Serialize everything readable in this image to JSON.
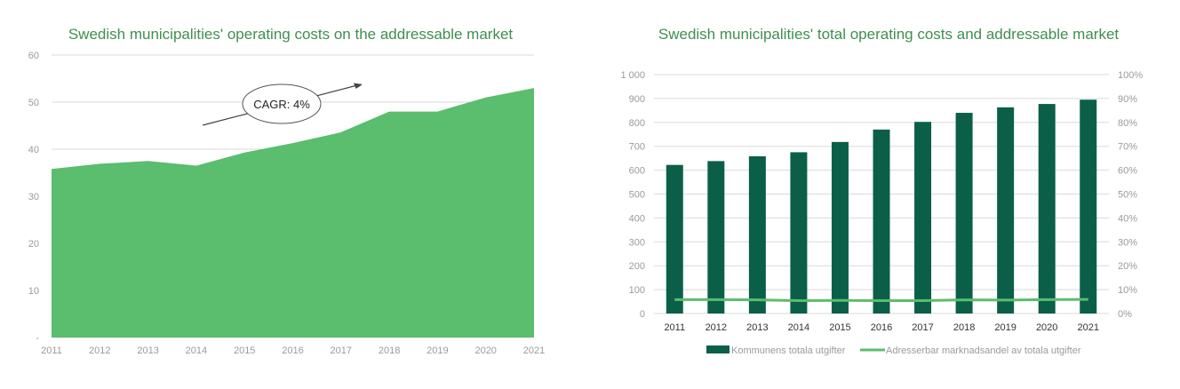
{
  "chart_data": [
    {
      "type": "area",
      "title": "Swedish municipalities' operating costs on the addressable market",
      "x": [
        "2011",
        "2012",
        "2013",
        "2014",
        "2015",
        "2016",
        "2017",
        "2018",
        "2019",
        "2020",
        "2021"
      ],
      "series": [
        {
          "values": [
            35.8,
            36.9,
            37.5,
            36.5,
            39.3,
            41.3,
            43.6,
            48.0,
            48.0,
            51.0,
            53.0
          ]
        }
      ],
      "y_ticks": [
        "-",
        "10",
        "20",
        "30",
        "40",
        "50",
        "60"
      ],
      "ylim": [
        0,
        60
      ],
      "grid": true,
      "annotation": "CAGR: 4%",
      "colors": {
        "area": "#5bbd6e",
        "title": "#3f8f4f"
      }
    },
    {
      "type": "bar",
      "title": "Swedish municipalities' total operating costs and addressable market",
      "categories": [
        "2011",
        "2012",
        "2013",
        "2014",
        "2015",
        "2016",
        "2017",
        "2018",
        "2019",
        "2020",
        "2021"
      ],
      "series": [
        {
          "name": "Kommunens totala utgifter",
          "axis": "left",
          "type": "bar",
          "values": [
            622,
            638,
            658,
            675,
            718,
            770,
            802,
            840,
            863,
            877,
            895
          ]
        },
        {
          "name": "Adresserbar marknadsandel av totala utgifter",
          "axis": "right",
          "type": "line",
          "values": [
            5.8,
            5.8,
            5.7,
            5.4,
            5.5,
            5.4,
            5.4,
            5.7,
            5.6,
            5.8,
            5.9
          ]
        }
      ],
      "y_left_ticks": [
        "0",
        "100",
        "200",
        "300",
        "400",
        "500",
        "600",
        "700",
        "800",
        "900",
        "1 000"
      ],
      "y_right_ticks": [
        "0%",
        "10%",
        "20%",
        "30%",
        "40%",
        "50%",
        "60%",
        "70%",
        "80%",
        "90%",
        "100%"
      ],
      "ylim_left": [
        0,
        1000
      ],
      "ylim_right": [
        0,
        100
      ],
      "grid": true,
      "legend_position": "bottom",
      "colors": {
        "bar": "#0b5f49",
        "line": "#5bbd6e",
        "title": "#3f8f4f"
      }
    }
  ]
}
